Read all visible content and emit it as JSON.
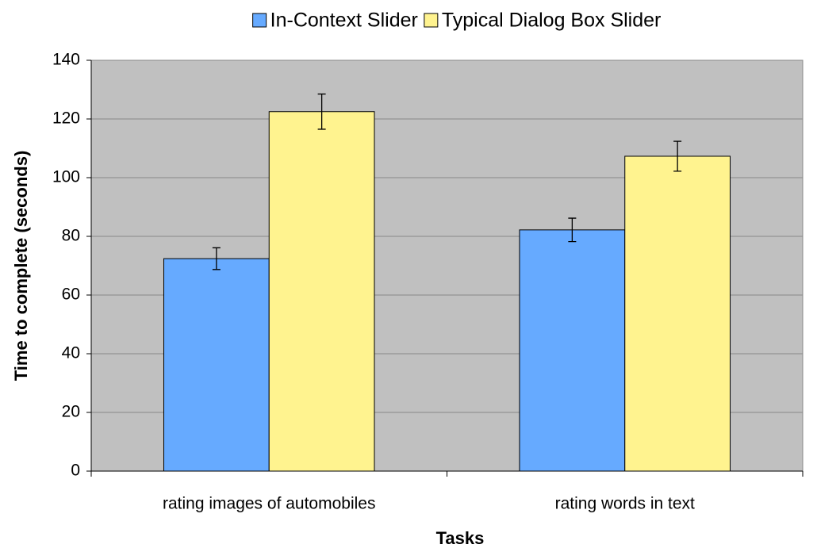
{
  "chart_data": {
    "type": "bar",
    "x_label": "Tasks",
    "y_label": "Time to complete (seconds)",
    "categories": [
      "rating images of automobiles",
      "rating words in text"
    ],
    "series": [
      {
        "name": "In-Context Slider",
        "color": "#66aaff",
        "values": [
          72.4,
          82.2
        ],
        "errors": [
          3.7,
          4
        ]
      },
      {
        "name": "Typical Dialog Box Slider",
        "color": "#fff38f",
        "values": [
          122.5,
          107.3
        ],
        "errors": [
          6,
          5.1
        ]
      }
    ],
    "ylim": [
      0,
      140
    ],
    "yticks": [
      0,
      20,
      40,
      60,
      80,
      100,
      120,
      140
    ],
    "grid": true,
    "legend": "top",
    "background": "#c0c0c0"
  }
}
